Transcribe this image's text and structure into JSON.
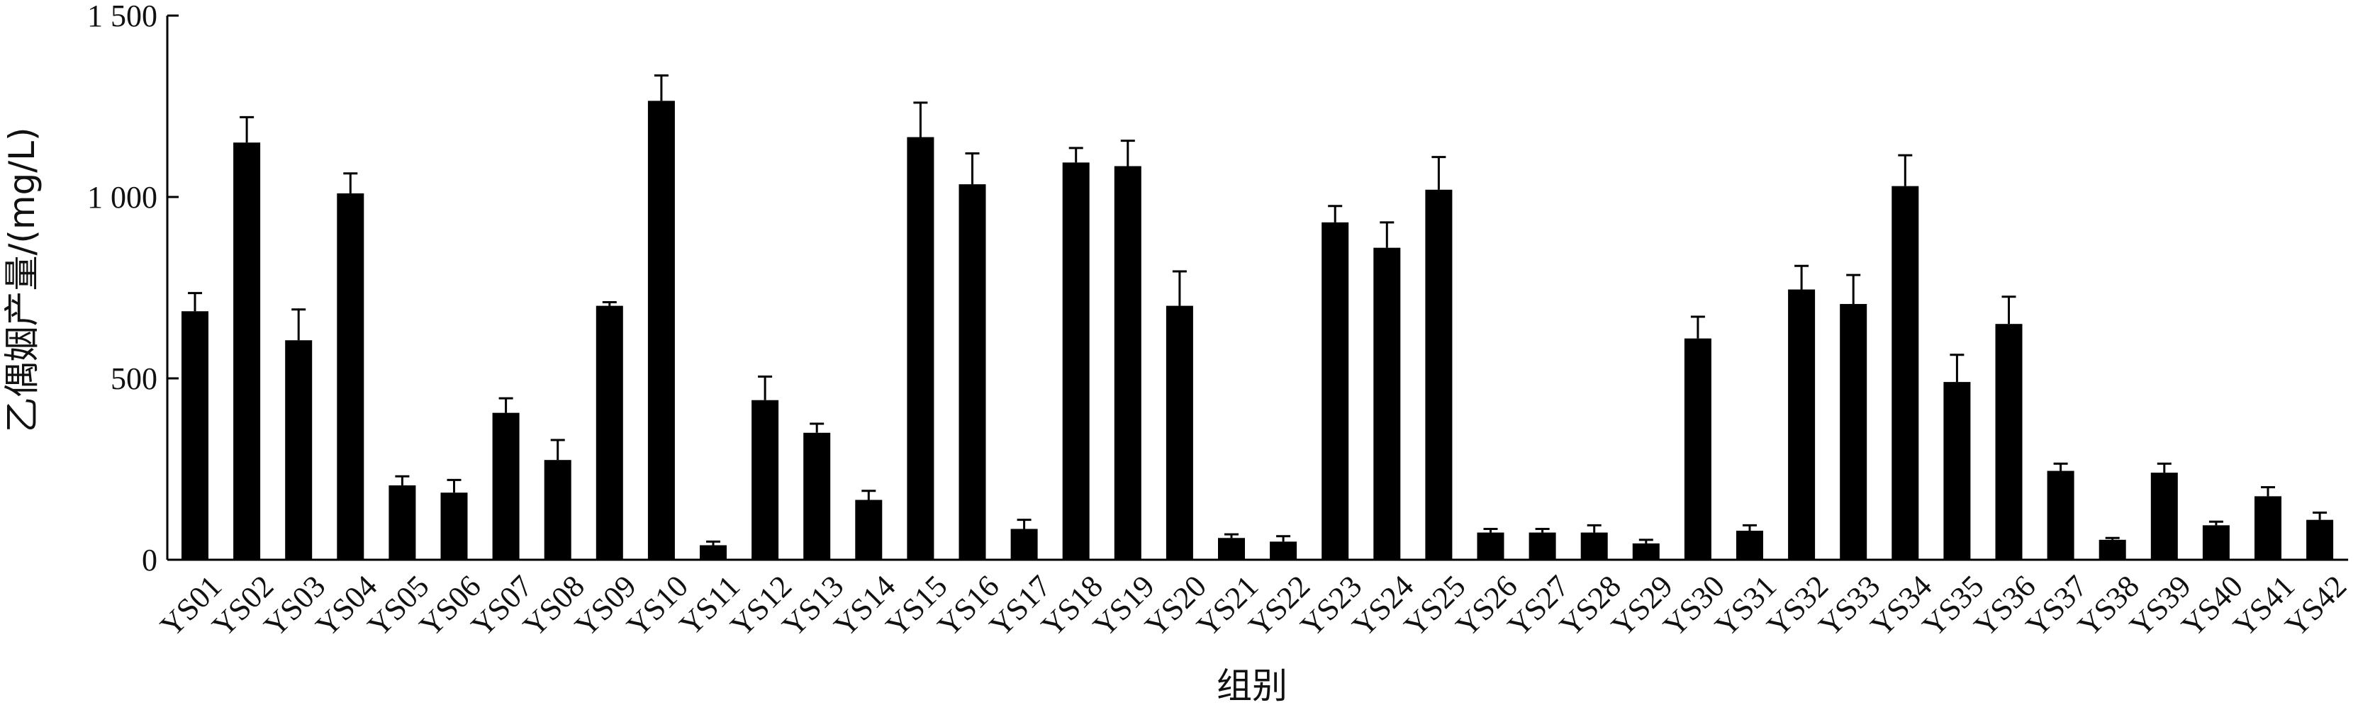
{
  "chart_data": {
    "type": "bar",
    "xlabel": "组别",
    "ylabel": "乙偶姻产量/(mg/L)",
    "ylim": [
      0,
      1500
    ],
    "yticks": [
      0,
      500,
      1000,
      1500
    ],
    "ytick_labels": [
      "0",
      "500",
      "1 000",
      "1 500"
    ],
    "grid": false,
    "error_bars": true,
    "bar_color": "#000000",
    "categories": [
      "YS01",
      "YS02",
      "YS03",
      "YS04",
      "YS05",
      "YS06",
      "YS07",
      "YS08",
      "YS09",
      "YS10",
      "YS11",
      "YS12",
      "YS13",
      "YS14",
      "YS15",
      "YS16",
      "YS17",
      "YS18",
      "YS19",
      "YS20",
      "YS21",
      "YS22",
      "YS23",
      "YS24",
      "YS25",
      "YS26",
      "YS27",
      "YS28",
      "YS29",
      "YS30",
      "YS31",
      "YS32",
      "YS33",
      "YS34",
      "YS35",
      "YS36",
      "YS37",
      "YS38",
      "YS39",
      "YS40",
      "YS41",
      "YS42"
    ],
    "values": [
      685,
      1150,
      605,
      1010,
      205,
      185,
      405,
      275,
      700,
      1265,
      40,
      440,
      350,
      165,
      1165,
      1035,
      85,
      1095,
      1085,
      700,
      60,
      50,
      930,
      860,
      1020,
      75,
      75,
      75,
      45,
      610,
      80,
      745,
      705,
      1030,
      490,
      650,
      245,
      55,
      240,
      95,
      175,
      110
    ],
    "errors": [
      50,
      70,
      85,
      55,
      25,
      35,
      40,
      55,
      10,
      70,
      10,
      65,
      25,
      25,
      95,
      85,
      25,
      40,
      70,
      95,
      10,
      15,
      45,
      70,
      90,
      10,
      10,
      20,
      10,
      60,
      15,
      65,
      80,
      85,
      75,
      75,
      20,
      5,
      25,
      10,
      25,
      20
    ]
  }
}
